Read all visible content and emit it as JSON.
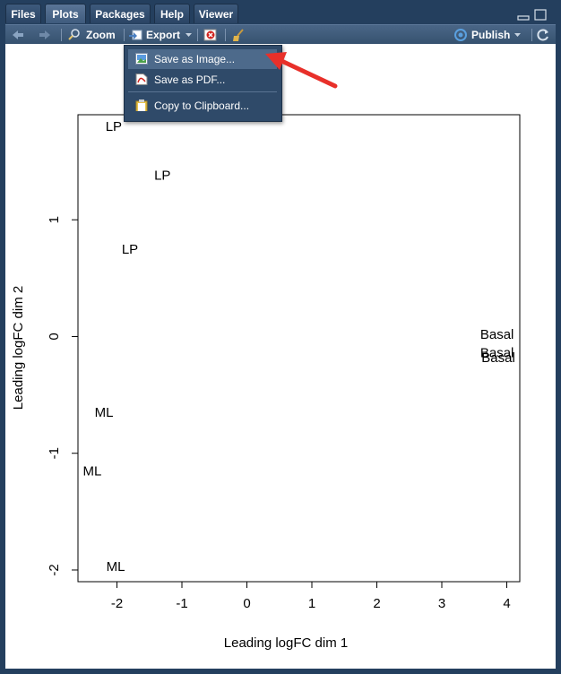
{
  "tabs": [
    {
      "label": "Files"
    },
    {
      "label": "Plots"
    },
    {
      "label": "Packages"
    },
    {
      "label": "Help"
    },
    {
      "label": "Viewer"
    }
  ],
  "toolbar": {
    "zoom_label": "Zoom",
    "export_label": "Export",
    "publish_label": "Publish"
  },
  "export_menu": {
    "items": [
      {
        "label": "Save as Image..."
      },
      {
        "label": "Save as PDF..."
      },
      {
        "label": "Copy to Clipboard..."
      }
    ]
  },
  "colors": {
    "accent_arrow": "#e8302a"
  },
  "chart_data": {
    "type": "scatter",
    "xlabel": "Leading logFC dim 1",
    "ylabel": "Leading logFC dim 2",
    "xlim": [
      -2.6,
      4.2
    ],
    "ylim": [
      -2.1,
      1.9
    ],
    "xticks": [
      -2,
      -1,
      0,
      1,
      2,
      3,
      4
    ],
    "yticks": [
      -2,
      -1,
      0,
      1
    ],
    "points": [
      {
        "label": "LP",
        "x": -2.05,
        "y": 1.8
      },
      {
        "label": "LP",
        "x": -1.3,
        "y": 1.38
      },
      {
        "label": "LP",
        "x": -1.8,
        "y": 0.75
      },
      {
        "label": "Basal",
        "x": 3.85,
        "y": 0.02
      },
      {
        "label": "Basal",
        "x": 3.85,
        "y": -0.14
      },
      {
        "label": "Basal",
        "x": 3.87,
        "y": -0.18
      },
      {
        "label": "ML",
        "x": -2.2,
        "y": -0.65
      },
      {
        "label": "ML",
        "x": -2.38,
        "y": -1.15
      },
      {
        "label": "ML",
        "x": -2.02,
        "y": -1.97
      }
    ]
  }
}
